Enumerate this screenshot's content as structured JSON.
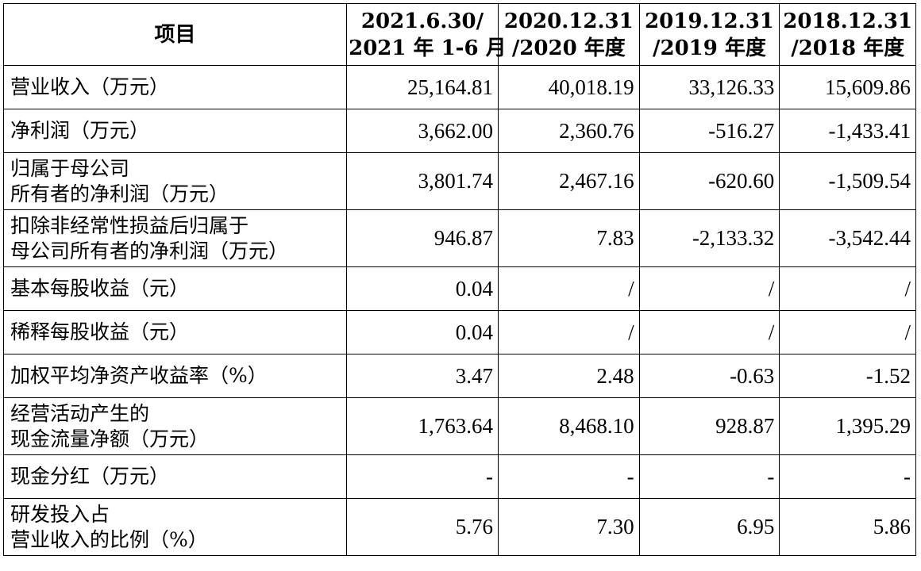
{
  "header": {
    "item": "项目",
    "col1": [
      "2021.6.30/",
      "2021 年 1-6 月"
    ],
    "col2": [
      "2020.12.31",
      "/2020 年度"
    ],
    "col3": [
      "2019.12.31",
      "/2019 年度"
    ],
    "col4": [
      "2018.12.31",
      "/2018 年度"
    ]
  },
  "rows": [
    {
      "label": [
        "营业收入（万元）"
      ],
      "values": [
        "25,164.81",
        "40,018.19",
        "33,126.33",
        "15,609.86"
      ]
    },
    {
      "label": [
        "净利润（万元）"
      ],
      "values": [
        "3,662.00",
        "2,360.76",
        "-516.27",
        "-1,433.41"
      ]
    },
    {
      "label": [
        "归属于母公司",
        "所有者的净利润（万元）"
      ],
      "values": [
        "3,801.74",
        "2,467.16",
        "-620.60",
        "-1,509.54"
      ]
    },
    {
      "label": [
        "扣除非经常性损益后归属于",
        "母公司所有者的净利润（万元）"
      ],
      "values": [
        "946.87",
        "7.83",
        "-2,133.32",
        "-3,542.44"
      ]
    },
    {
      "label": [
        "基本每股收益（元）"
      ],
      "values": [
        "0.04",
        "/",
        "/",
        "/"
      ]
    },
    {
      "label": [
        "稀释每股收益（元）"
      ],
      "values": [
        "0.04",
        "/",
        "/",
        "/"
      ]
    },
    {
      "label": [
        "加权平均净资产收益率（%）"
      ],
      "values": [
        "3.47",
        "2.48",
        "-0.63",
        "-1.52"
      ]
    },
    {
      "label": [
        "经营活动产生的",
        "现金流量净额（万元）"
      ],
      "values": [
        "1,763.64",
        "8,468.10",
        "928.87",
        "1,395.29"
      ]
    },
    {
      "label": [
        "现金分红（万元）"
      ],
      "values": [
        "-",
        "-",
        "-",
        "-"
      ]
    },
    {
      "label": [
        "研发投入占",
        "营业收入的比例（%）"
      ],
      "values": [
        "5.76",
        "7.30",
        "6.95",
        "5.86"
      ]
    }
  ]
}
